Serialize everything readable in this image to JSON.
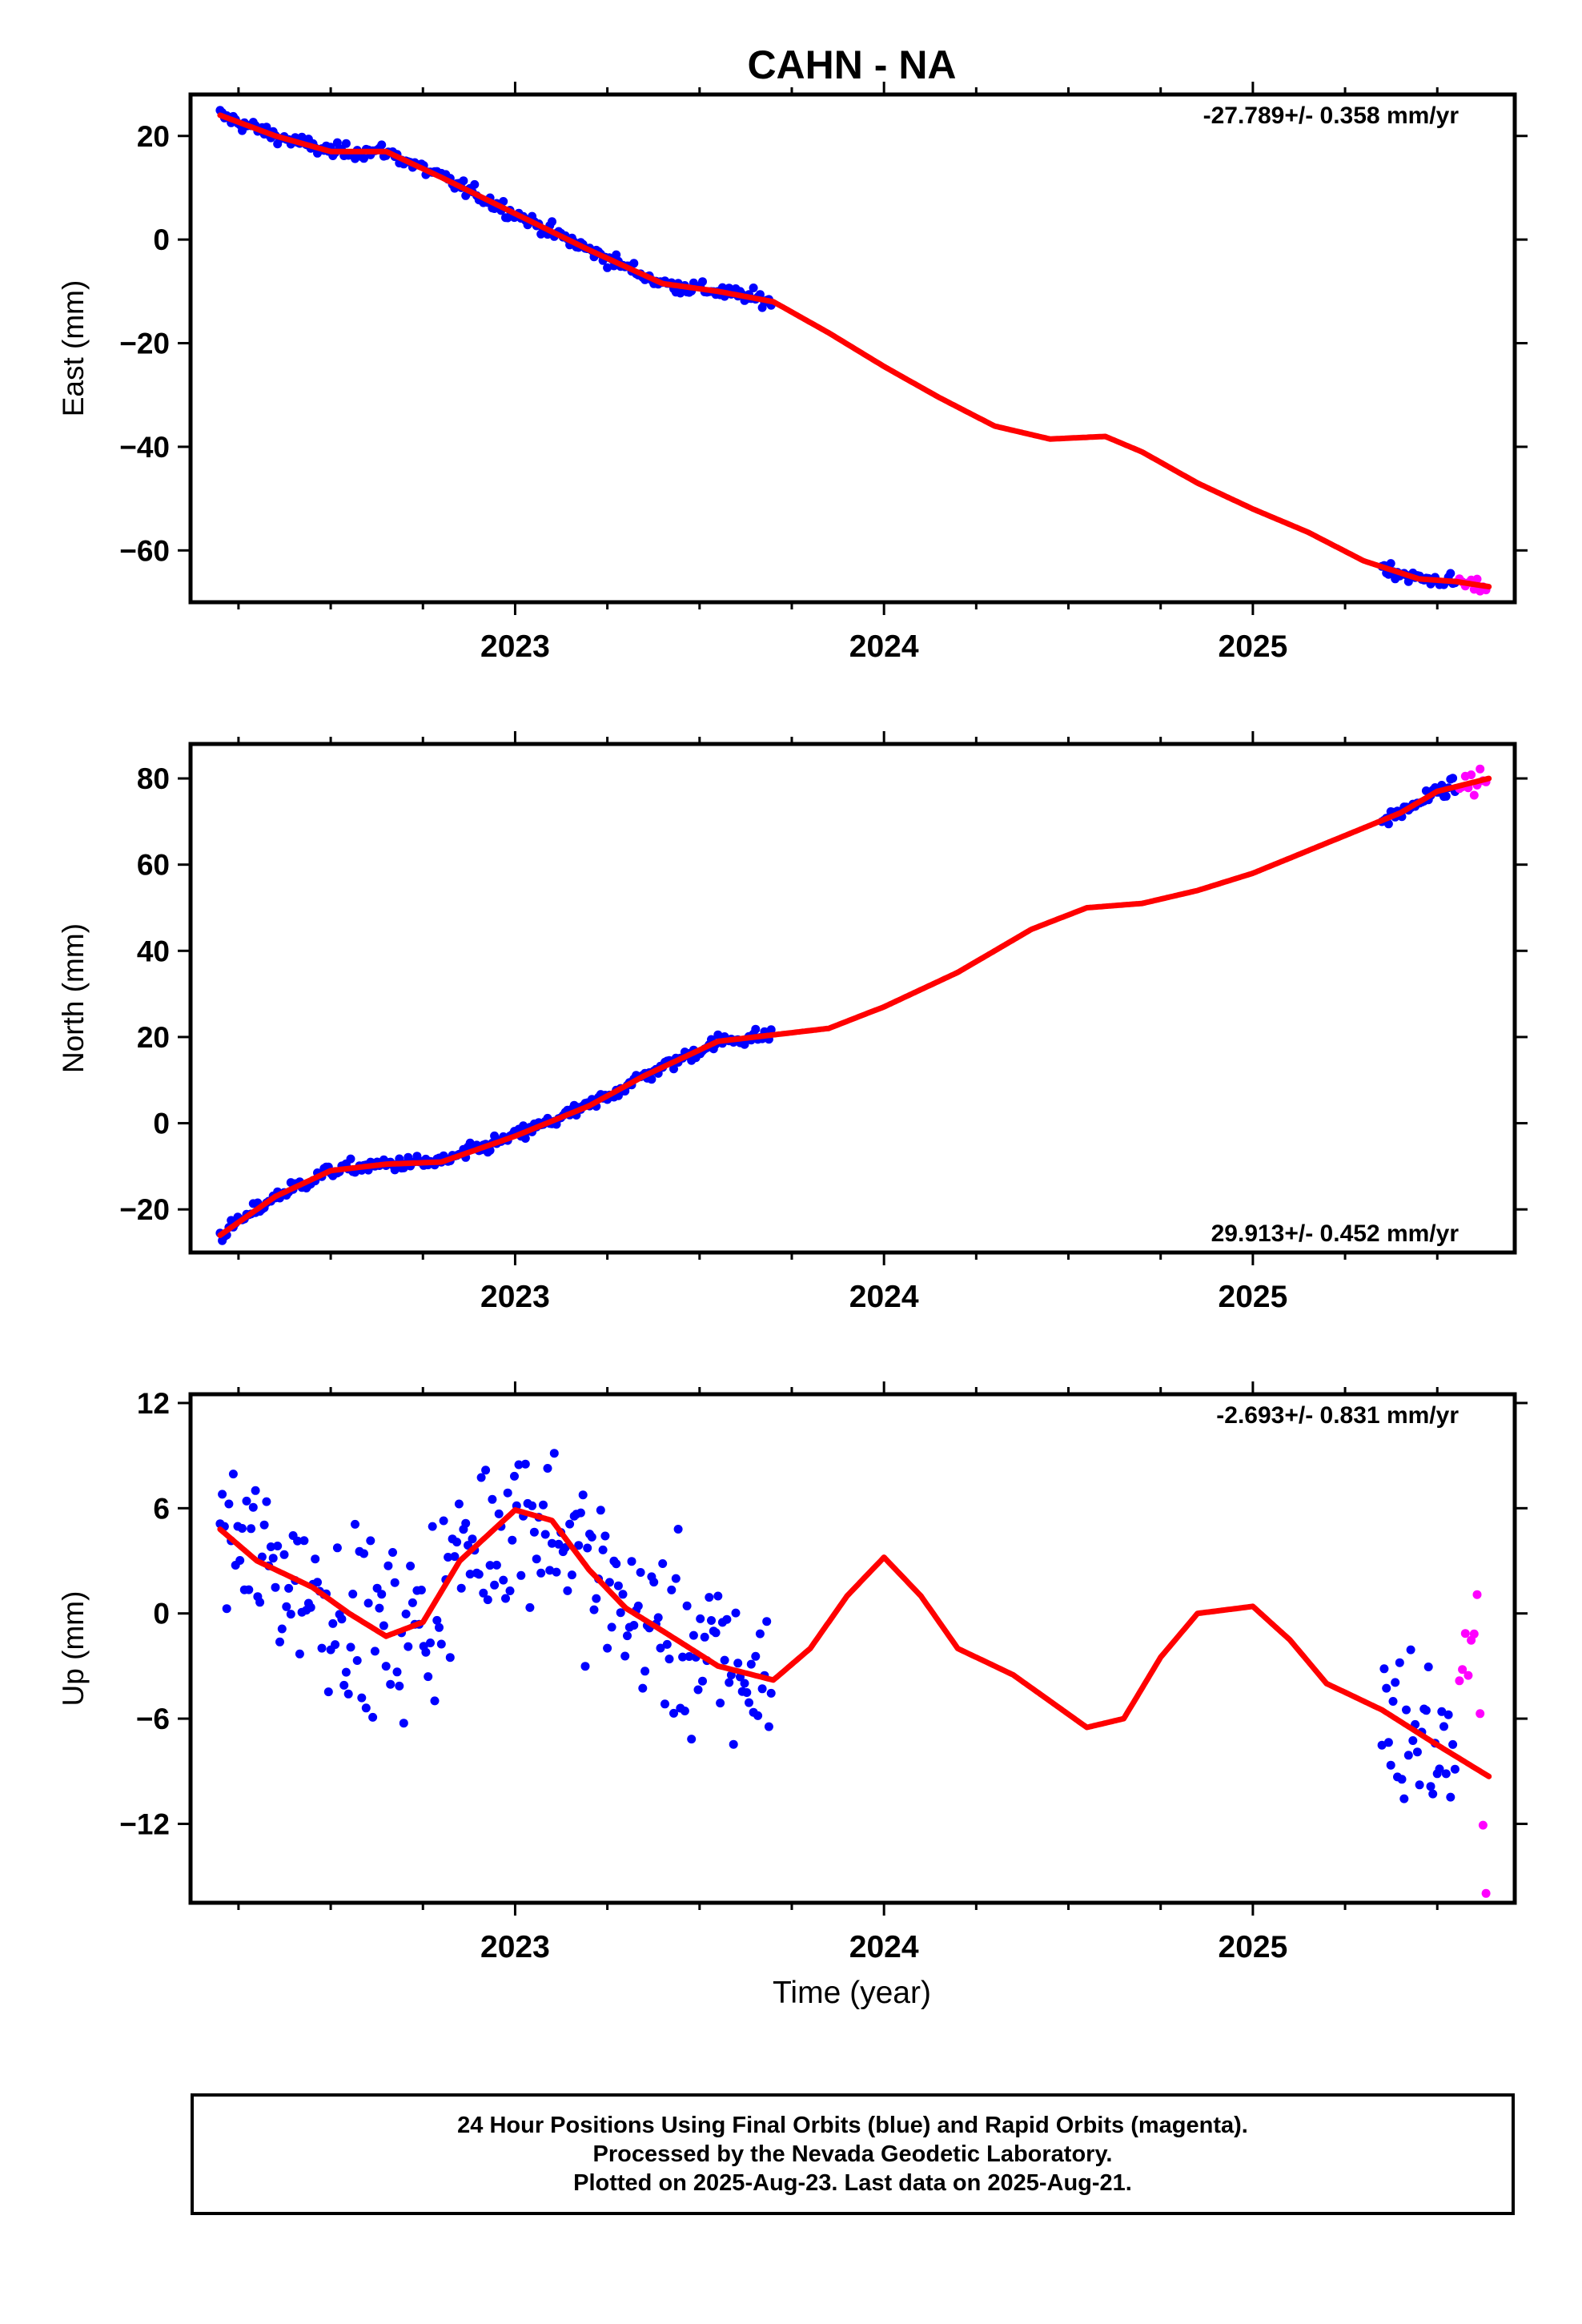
{
  "title": "CAHN - NA",
  "colors": {
    "final": "#0000ff",
    "rapid": "#ff00ff",
    "model": "#ff0000",
    "axis": "#000000"
  },
  "chart_data": [
    {
      "type": "scatter",
      "ylabel": "East (mm)",
      "xlabel": "",
      "xlim": [
        2022.12,
        2025.71
      ],
      "ylim": [
        -70,
        28
      ],
      "yticks": [
        20,
        0,
        -20,
        -40,
        -60
      ],
      "ytick_labels": [
        "20",
        "0",
        "−20",
        "−40",
        "−60"
      ],
      "xticks": [
        2023,
        2024,
        2025
      ],
      "xtick_labels": [
        "2023",
        "2024",
        "2025"
      ],
      "rate": "-27.789+/- 0.358 mm/yr",
      "rate_position": "top-right",
      "noise": 1.0,
      "final_segments": [
        [
          2022.2,
          2023.7
        ],
        [
          2025.35,
          2025.55
        ]
      ],
      "rapid_segment": [
        2025.56,
        2025.64
      ],
      "model": {
        "x": [
          2022.2,
          2022.35,
          2022.5,
          2022.65,
          2022.8,
          2023.0,
          2023.2,
          2023.4,
          2023.55,
          2023.7,
          2023.85,
          2024.0,
          2024.15,
          2024.3,
          2024.45,
          2024.6,
          2024.7,
          2024.85,
          2025.0,
          2025.15,
          2025.3,
          2025.45,
          2025.55,
          2025.64
        ],
        "y": [
          24,
          20,
          17,
          17,
          12,
          5,
          -2,
          -8.5,
          -10,
          -12,
          -18,
          -24.5,
          -30.5,
          -36,
          -38.5,
          -38,
          -41,
          -47,
          -52,
          -56.5,
          -62,
          -65.5,
          -66,
          -67
        ]
      }
    },
    {
      "type": "scatter",
      "ylabel": "North (mm)",
      "xlabel": "",
      "xlim": [
        2022.12,
        2025.71
      ],
      "ylim": [
        -30,
        88
      ],
      "yticks": [
        80,
        60,
        40,
        20,
        0,
        -20
      ],
      "ytick_labels": [
        "80",
        "60",
        "40",
        "20",
        "0",
        "−20"
      ],
      "xticks": [
        2023,
        2024,
        2025
      ],
      "xtick_labels": [
        "2023",
        "2024",
        "2025"
      ],
      "rate": "29.913+/- 0.452 mm/yr",
      "rate_position": "bottom-right",
      "noise": 1.2,
      "final_segments": [
        [
          2022.2,
          2023.7
        ],
        [
          2025.35,
          2025.55
        ]
      ],
      "rapid_segment": [
        2025.56,
        2025.64
      ],
      "model": {
        "x": [
          2022.2,
          2022.35,
          2022.5,
          2022.65,
          2022.8,
          2023.0,
          2023.2,
          2023.35,
          2023.55,
          2023.7,
          2023.85,
          2024.0,
          2024.2,
          2024.4,
          2024.55,
          2024.7,
          2024.85,
          2025.0,
          2025.2,
          2025.4,
          2025.5,
          2025.64
        ],
        "y": [
          -26,
          -17,
          -11,
          -9.5,
          -9,
          -3,
          4,
          11,
          19,
          20.5,
          22,
          27,
          35,
          45,
          50,
          51,
          54,
          58,
          65,
          72,
          77,
          80
        ]
      }
    },
    {
      "type": "scatter",
      "ylabel": "Up (mm)",
      "xlabel": "Time (year)",
      "xlim": [
        2022.12,
        2025.71
      ],
      "ylim": [
        -16.5,
        12.5
      ],
      "yticks": [
        12,
        6,
        0,
        -6,
        -12
      ],
      "ytick_labels": [
        "12",
        "6",
        "0",
        "−6",
        "−12"
      ],
      "xticks": [
        2023,
        2024,
        2025
      ],
      "xtick_labels": [
        "2023",
        "2024",
        "2025"
      ],
      "rate": "-2.693+/- 0.831 mm/yr",
      "rate_position": "top-right",
      "noise": 3.5,
      "final_segments": [
        [
          2022.2,
          2023.7
        ],
        [
          2025.35,
          2025.55
        ]
      ],
      "rapid_segment": [
        2025.56,
        2025.64
      ],
      "model": {
        "x": [
          2022.2,
          2022.3,
          2022.45,
          2022.55,
          2022.65,
          2022.75,
          2022.85,
          2023.0,
          2023.1,
          2023.2,
          2023.3,
          2023.4,
          2023.55,
          2023.7,
          2023.8,
          2023.9,
          2024.0,
          2024.1,
          2024.2,
          2024.35,
          2024.45,
          2024.55,
          2024.65,
          2024.75,
          2024.85,
          2025.0,
          2025.1,
          2025.2,
          2025.35,
          2025.5,
          2025.64
        ],
        "y": [
          4.8,
          3,
          1.5,
          0,
          -1.3,
          -0.5,
          3,
          5.9,
          5.3,
          2.5,
          0.3,
          -1,
          -3,
          -3.8,
          -2,
          1,
          3.2,
          1,
          -2,
          -3.5,
          -5,
          -6.5,
          -6,
          -2.5,
          0,
          0.4,
          -1.5,
          -4,
          -5.5,
          -7.5,
          -9.3
        ]
      }
    }
  ],
  "footer": {
    "line1": "24 Hour Positions Using Final Orbits (blue) and Rapid Orbits (magenta).",
    "line2": "Processed by the Nevada Geodetic Laboratory.",
    "line3": "Plotted on 2025-Aug-23. Last data on 2025-Aug-21."
  }
}
